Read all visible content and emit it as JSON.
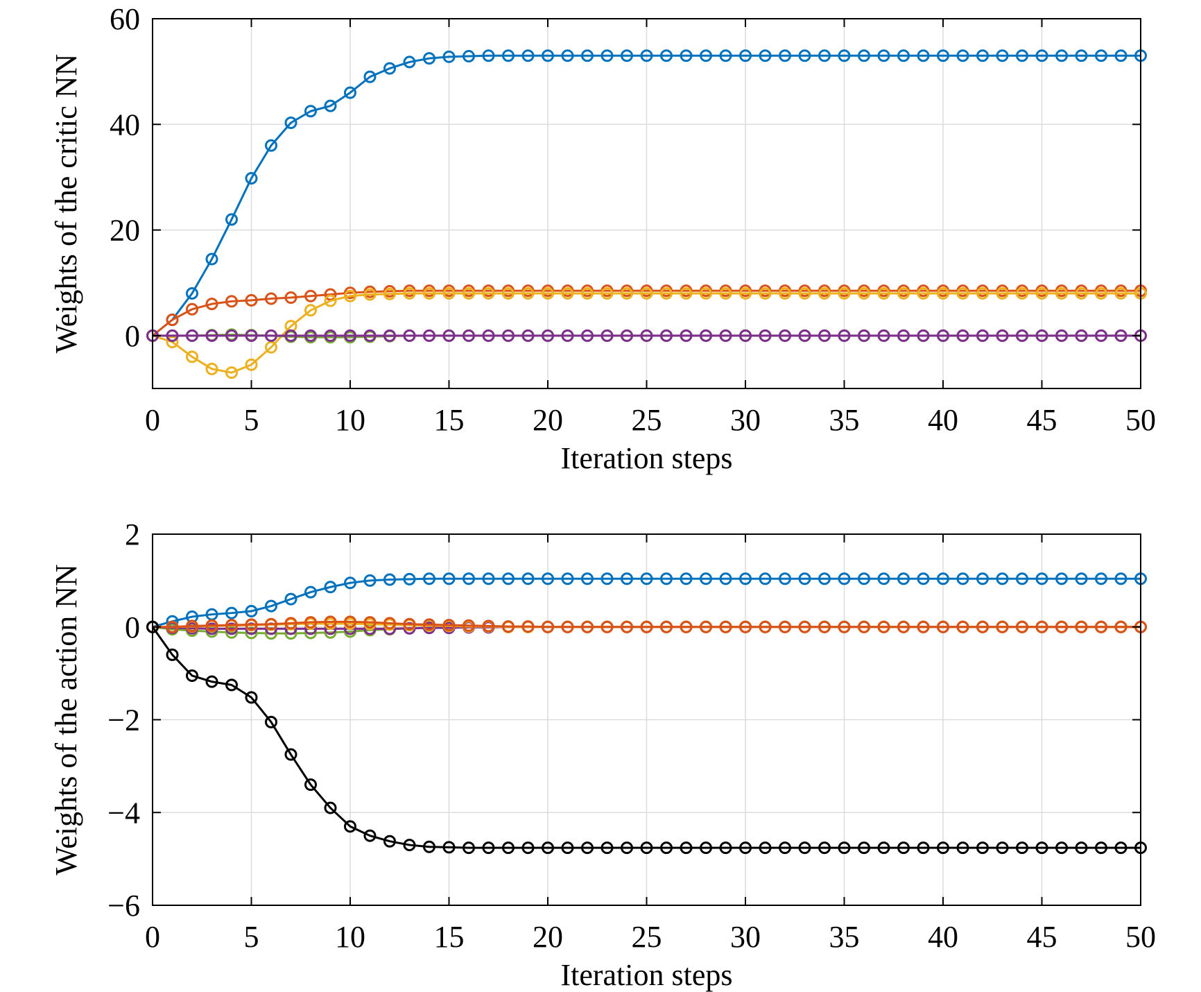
{
  "chart_data": [
    {
      "type": "line",
      "xlabel": "Iteration steps",
      "ylabel": "Weights of the critic NN",
      "xlim": [
        0,
        50
      ],
      "ylim": [
        -10,
        60
      ],
      "xticks": [
        0,
        5,
        10,
        15,
        20,
        25,
        30,
        35,
        40,
        45,
        50
      ],
      "yticks": [
        0,
        20,
        40,
        60
      ],
      "ytick_labels": [
        "0",
        "20",
        "40",
        "60"
      ],
      "grid": true,
      "marker": "circle",
      "series": [
        {
          "color": "#0072BD",
          "values": [
            0,
            3,
            8,
            14.5,
            22,
            29.8,
            36,
            40.3,
            42.5,
            43.5,
            46,
            49,
            50.6,
            51.8,
            52.5,
            52.8,
            52.9,
            53,
            53,
            53,
            53,
            53,
            53,
            53,
            53,
            53,
            53,
            53,
            53,
            53,
            53,
            53,
            53,
            53,
            53,
            53,
            53,
            53,
            53,
            53,
            53,
            53,
            53,
            53,
            53,
            53,
            53,
            53,
            53,
            53,
            53
          ]
        },
        {
          "color": "#D95319",
          "values": [
            0,
            3,
            5,
            6,
            6.5,
            6.7,
            7,
            7.2,
            7.5,
            7.8,
            8.1,
            8.3,
            8.4,
            8.5,
            8.5,
            8.5,
            8.5,
            8.5,
            8.5,
            8.5,
            8.5,
            8.5,
            8.5,
            8.5,
            8.5,
            8.5,
            8.5,
            8.5,
            8.5,
            8.5,
            8.5,
            8.5,
            8.5,
            8.5,
            8.5,
            8.5,
            8.5,
            8.5,
            8.5,
            8.5,
            8.5,
            8.5,
            8.5,
            8.5,
            8.5,
            8.5,
            8.5,
            8.5,
            8.5,
            8.5,
            8.5
          ]
        },
        {
          "color": "#EDB120",
          "values": [
            0,
            -1.2,
            -4,
            -6.3,
            -7,
            -5.5,
            -2.2,
            1.8,
            4.8,
            6.6,
            7.5,
            7.8,
            7.9,
            8,
            8,
            8,
            8,
            8,
            8,
            8,
            8,
            8,
            8,
            8,
            8,
            8,
            8,
            8,
            8,
            8,
            8,
            8,
            8,
            8,
            8,
            8,
            8,
            8,
            8,
            8,
            8,
            8,
            8,
            8,
            8,
            8,
            8,
            8,
            8,
            8,
            8
          ]
        },
        {
          "color": "#77AC30",
          "values": [
            0,
            0,
            0,
            0.1,
            0.2,
            0.1,
            0,
            -0.2,
            -0.3,
            -0.3,
            -0.3,
            -0.2,
            -0.1,
            0,
            0,
            0,
            0,
            0,
            0,
            0,
            0,
            0,
            0,
            0,
            0,
            0,
            0,
            0,
            0,
            0,
            0,
            0,
            0,
            0,
            0,
            0,
            0,
            0,
            0,
            0,
            0,
            0,
            0,
            0,
            0,
            0,
            0,
            0,
            0,
            0,
            0
          ]
        },
        {
          "color": "#7E2F8E",
          "values": [
            0,
            0,
            0,
            0,
            0,
            0,
            0,
            0,
            0,
            0,
            0,
            0,
            0,
            0,
            0,
            0,
            0,
            0,
            0,
            0,
            0,
            0,
            0,
            0,
            0,
            0,
            0,
            0,
            0,
            0,
            0,
            0,
            0,
            0,
            0,
            0,
            0,
            0,
            0,
            0,
            0,
            0,
            0,
            0,
            0,
            0,
            0,
            0,
            0,
            0,
            0
          ]
        }
      ]
    },
    {
      "type": "line",
      "xlabel": "Iteration steps",
      "ylabel": "Weights of the action NN",
      "xlim": [
        0,
        50
      ],
      "ylim": [
        -6,
        2
      ],
      "xticks": [
        0,
        5,
        10,
        15,
        20,
        25,
        30,
        35,
        40,
        45,
        50
      ],
      "yticks": [
        -6,
        -4,
        -2,
        0,
        2
      ],
      "ytick_labels": [
        "−6",
        "−4",
        "−2",
        "0",
        "2"
      ],
      "grid": true,
      "marker": "circle",
      "series": [
        {
          "color": "#0072BD",
          "values": [
            0,
            0.12,
            0.22,
            0.27,
            0.3,
            0.34,
            0.45,
            0.6,
            0.75,
            0.86,
            0.95,
            1.0,
            1.02,
            1.03,
            1.04,
            1.04,
            1.04,
            1.04,
            1.04,
            1.04,
            1.04,
            1.04,
            1.04,
            1.04,
            1.04,
            1.04,
            1.04,
            1.04,
            1.04,
            1.04,
            1.04,
            1.04,
            1.04,
            1.04,
            1.04,
            1.04,
            1.04,
            1.04,
            1.04,
            1.04,
            1.04,
            1.04,
            1.04,
            1.04,
            1.04,
            1.04,
            1.04,
            1.04,
            1.04,
            1.04,
            1.04
          ]
        },
        {
          "color": "#77AC30",
          "values": [
            0,
            -0.05,
            -0.08,
            -0.1,
            -0.12,
            -0.13,
            -0.14,
            -0.14,
            -0.13,
            -0.12,
            -0.1,
            -0.07,
            -0.05,
            -0.03,
            -0.02,
            -0.01,
            0,
            0,
            0,
            0,
            0,
            0,
            0,
            0,
            0,
            0,
            0,
            0,
            0,
            0,
            0,
            0,
            0,
            0,
            0,
            0,
            0,
            0,
            0,
            0,
            0,
            0,
            0,
            0,
            0,
            0,
            0,
            0,
            0,
            0,
            0
          ]
        },
        {
          "color": "#7E2F8E",
          "values": [
            0,
            -0.02,
            -0.03,
            -0.04,
            -0.04,
            -0.04,
            -0.04,
            -0.04,
            -0.04,
            -0.04,
            -0.04,
            -0.04,
            -0.04,
            -0.03,
            -0.02,
            -0.02,
            -0.01,
            -0.01,
            0,
            0,
            0,
            0,
            0,
            0,
            0,
            0,
            0,
            0,
            0,
            0,
            0,
            0,
            0,
            0,
            0,
            0,
            0,
            0,
            0,
            0,
            0,
            0,
            0,
            0,
            0,
            0,
            0,
            0,
            0,
            0,
            0
          ]
        },
        {
          "color": "#EDB120",
          "values": [
            0,
            0,
            0.01,
            0.02,
            0.03,
            0.04,
            0.05,
            0.06,
            0.07,
            0.07,
            0.07,
            0.06,
            0.05,
            0.04,
            0.03,
            0.02,
            0.01,
            0.01,
            0,
            0,
            0,
            0,
            0,
            0,
            0,
            0,
            0,
            0,
            0,
            0,
            0,
            0,
            0,
            0,
            0,
            0,
            0,
            0,
            0,
            0,
            0,
            0,
            0,
            0,
            0,
            0,
            0,
            0,
            0,
            0,
            0
          ]
        },
        {
          "color": "#D95319",
          "values": [
            0,
            0,
            0.02,
            0.03,
            0.04,
            0.05,
            0.06,
            0.08,
            0.1,
            0.11,
            0.11,
            0.1,
            0.08,
            0.06,
            0.05,
            0.04,
            0.03,
            0.02,
            0.01,
            0.01,
            0,
            0,
            0,
            0,
            0,
            0,
            0,
            0,
            0,
            0,
            0,
            0,
            0,
            0,
            0,
            0,
            0,
            0,
            0,
            0,
            0,
            0,
            0,
            0,
            0,
            0,
            0,
            0,
            0,
            0,
            0
          ]
        },
        {
          "color": "#000000",
          "values": [
            0,
            -0.6,
            -1.05,
            -1.18,
            -1.25,
            -1.52,
            -2.05,
            -2.75,
            -3.4,
            -3.9,
            -4.3,
            -4.5,
            -4.62,
            -4.7,
            -4.74,
            -4.75,
            -4.76,
            -4.76,
            -4.76,
            -4.76,
            -4.76,
            -4.76,
            -4.76,
            -4.76,
            -4.76,
            -4.76,
            -4.76,
            -4.76,
            -4.76,
            -4.76,
            -4.76,
            -4.76,
            -4.76,
            -4.76,
            -4.76,
            -4.76,
            -4.76,
            -4.76,
            -4.76,
            -4.76,
            -4.76,
            -4.76,
            -4.76,
            -4.76,
            -4.76,
            -4.76,
            -4.76,
            -4.76,
            -4.76,
            -4.76,
            -4.76
          ]
        }
      ]
    }
  ]
}
